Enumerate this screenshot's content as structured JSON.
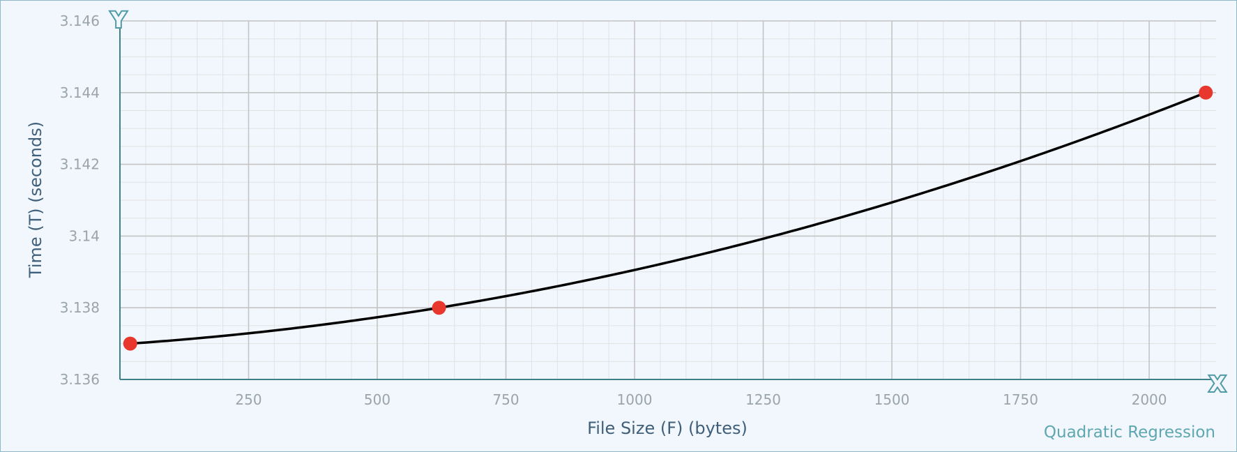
{
  "chart_data": {
    "type": "scatter",
    "xlabel": "File Size (F) (bytes)",
    "ylabel": "Time (T) (seconds)",
    "annotation": "Quadratic Regression",
    "axis_markers": {
      "x": "X",
      "y": "Y"
    },
    "xlim": [
      0,
      2130
    ],
    "ylim": [
      3.136,
      3.146
    ],
    "x_ticks": [
      250,
      500,
      750,
      1000,
      1250,
      1500,
      1750,
      2000
    ],
    "x_tick_labels": [
      "250",
      "500",
      "750",
      "1000",
      "1250",
      "1500",
      "1750",
      "2000"
    ],
    "y_ticks": [
      3.136,
      3.138,
      3.14,
      3.142,
      3.144,
      3.146
    ],
    "y_tick_labels": [
      "3.136",
      "3.138",
      "3.14",
      "3.142",
      "3.144",
      "3.146"
    ],
    "x_minor_step": 50,
    "y_minor_step": 0.0005,
    "grid": true,
    "points": [
      {
        "x": 20,
        "y": 3.137
      },
      {
        "x": 620,
        "y": 3.138
      },
      {
        "x": 2110,
        "y": 3.144
      }
    ],
    "regression": {
      "kind": "quadratic",
      "x_from": 20,
      "x_to": 2110
    },
    "colors": {
      "point": "#e8372c",
      "curve": "#000000",
      "axis": "#3d7f8a",
      "major_grid": "#c4c4c4",
      "minor_grid": "#e2e2e2"
    }
  }
}
